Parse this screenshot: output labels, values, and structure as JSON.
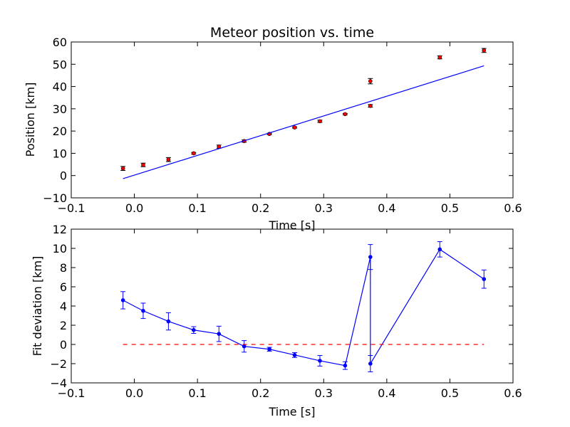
{
  "chart_data": [
    {
      "type": "scatter",
      "title": "Meteor position vs. time",
      "xlabel": "Time [s]",
      "ylabel": "Position [km]",
      "xlim": [
        -0.1,
        0.6
      ],
      "ylim": [
        -10,
        60
      ],
      "x_ticks": [
        "−0.1",
        "0.0",
        "0.1",
        "0.2",
        "0.3",
        "0.4",
        "0.5",
        "0.6"
      ],
      "y_ticks": [
        "−10",
        "0",
        "10",
        "20",
        "30",
        "40",
        "50",
        "60"
      ],
      "x_tick_values": [
        -0.1,
        0.0,
        0.1,
        0.2,
        0.3,
        0.4,
        0.5,
        0.6
      ],
      "y_tick_values": [
        -10,
        0,
        10,
        20,
        30,
        40,
        50,
        60
      ],
      "grid": false,
      "series": [
        {
          "kind": "points",
          "color": "#ff0000",
          "x": [
            -0.018,
            0.014,
            0.054,
            0.094,
            0.134,
            0.174,
            0.214,
            0.254,
            0.294,
            0.334,
            0.374,
            0.374,
            0.484,
            0.554
          ],
          "y": [
            3.2,
            4.8,
            7.2,
            10.0,
            13.0,
            15.5,
            18.7,
            21.6,
            24.4,
            27.6,
            31.3,
            42.4,
            53.1,
            56.2
          ],
          "yerr": [
            0.9,
            0.8,
            0.9,
            0.4,
            0.7,
            0.5,
            0.3,
            0.3,
            0.5,
            0.3,
            0.6,
            1.2,
            0.7,
            0.9
          ]
        },
        {
          "kind": "line",
          "color": "#0000ff",
          "x": [
            -0.018,
            0.554
          ],
          "y": [
            -1.4,
            49.3
          ]
        }
      ]
    },
    {
      "type": "line",
      "title": "",
      "xlabel": "Time [s]",
      "ylabel": "Fit deviation [km]",
      "xlim": [
        -0.1,
        0.6
      ],
      "ylim": [
        -4,
        12
      ],
      "x_ticks": [
        "−0.1",
        "0.0",
        "0.1",
        "0.2",
        "0.3",
        "0.4",
        "0.5",
        "0.6"
      ],
      "y_ticks": [
        "−4",
        "−2",
        "0",
        "2",
        "4",
        "6",
        "8",
        "10",
        "12"
      ],
      "x_tick_values": [
        -0.1,
        0.0,
        0.1,
        0.2,
        0.3,
        0.4,
        0.5,
        0.6
      ],
      "y_tick_values": [
        -4,
        -2,
        0,
        2,
        4,
        6,
        8,
        10,
        12
      ],
      "grid": false,
      "series": [
        {
          "kind": "line-points",
          "color": "#0000ff",
          "x": [
            -0.018,
            0.014,
            0.054,
            0.094,
            0.134,
            0.174,
            0.214,
            0.254,
            0.294,
            0.334,
            0.374,
            0.374,
            0.484,
            0.554
          ],
          "y": [
            4.6,
            3.5,
            2.4,
            1.5,
            1.1,
            -0.2,
            -0.5,
            -1.1,
            -1.7,
            -2.2,
            9.1,
            -2.0,
            9.9,
            6.8
          ],
          "yerr": [
            0.9,
            0.8,
            0.9,
            0.35,
            0.8,
            0.6,
            0.2,
            0.25,
            0.55,
            0.4,
            1.3,
            0.85,
            0.8,
            0.95
          ]
        },
        {
          "kind": "dashed-line",
          "color": "#ff0000",
          "x": [
            -0.018,
            0.554
          ],
          "y": [
            0,
            0
          ]
        }
      ]
    }
  ]
}
